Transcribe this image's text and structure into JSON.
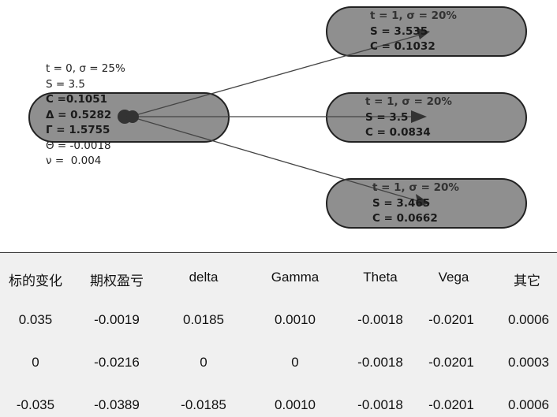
{
  "root": {
    "lines": [
      "t = 0, σ = 25%",
      "S = 3.5",
      "C =0.1051",
      "Δ = 0.5282",
      "Γ = 1.5755",
      "Θ = -0.0018",
      "ν =  0.004"
    ]
  },
  "children": [
    {
      "lines": [
        "t = 1, σ = 20%",
        "S = 3.535",
        "C = 0.1032"
      ]
    },
    {
      "lines": [
        "t = 1, σ = 20%",
        "S = 3.5",
        "C = 0.0834"
      ]
    },
    {
      "lines": [
        "t = 1, σ = 20%",
        "S = 3.465",
        "C = 0.0662"
      ]
    }
  ],
  "table": {
    "headers": [
      "标的变化",
      "期权盈亏",
      "delta",
      "Gamma",
      "Theta",
      "Vega",
      "其它"
    ],
    "rows": [
      [
        "0.035",
        "-0.0019",
        "0.0185",
        "0.0010",
        "-0.0018",
        "-0.0201",
        "0.0006"
      ],
      [
        "0",
        "-0.0216",
        "0",
        "0",
        "-0.0018",
        "-0.0201",
        "0.0003"
      ],
      [
        "-0.035",
        "-0.0389",
        "-0.0185",
        "0.0010",
        "-0.0018",
        "-0.0201",
        "0.0006"
      ]
    ]
  }
}
